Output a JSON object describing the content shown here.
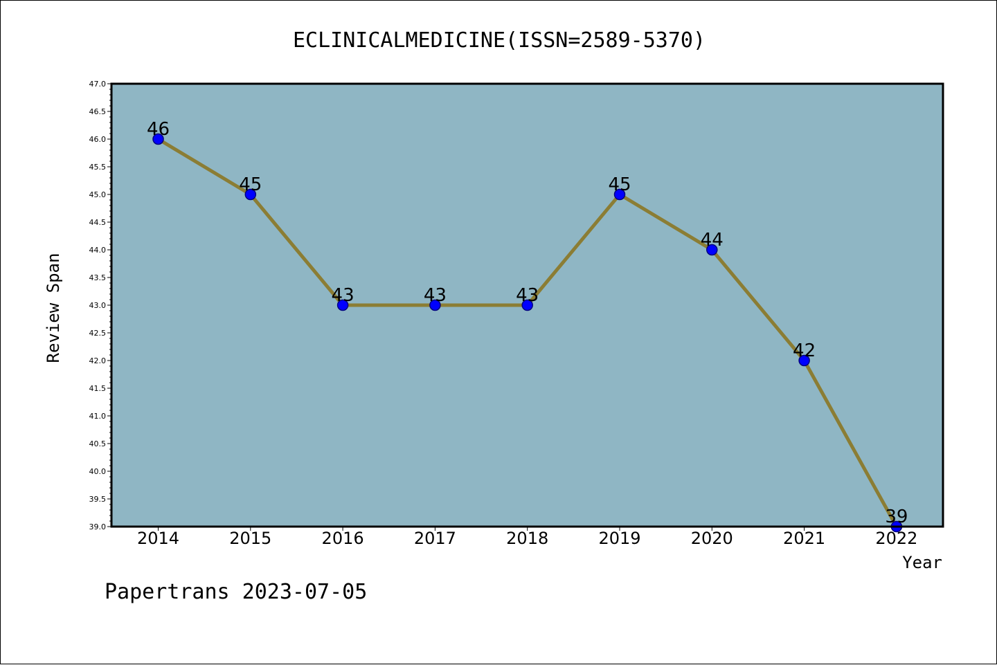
{
  "chart_data": {
    "type": "line",
    "title": "ECLINICALMEDICINE(ISSN=2589-5370)",
    "xlabel": "Year",
    "ylabel": "Review Span",
    "categories": [
      "2014",
      "2015",
      "2016",
      "2017",
      "2018",
      "2019",
      "2020",
      "2021",
      "2022"
    ],
    "series": [
      {
        "values": [
          46,
          45,
          43,
          43,
          43,
          45,
          44,
          42,
          39
        ]
      }
    ],
    "data_labels": [
      "46",
      "45",
      "43",
      "43",
      "43",
      "45",
      "44",
      "42",
      "39"
    ],
    "ylim": [
      39.0,
      47.0
    ],
    "yticks": [
      "39.0",
      "39.5",
      "40.0",
      "40.5",
      "41.0",
      "41.5",
      "42.0",
      "42.5",
      "43.0",
      "43.5",
      "44.0",
      "44.5",
      "45.0",
      "45.5",
      "46.0",
      "46.5",
      "47.0"
    ],
    "grid": false,
    "legend": "none",
    "colors": {
      "plot_background": "#8fb6c4",
      "line": "#8b7d34",
      "marker_fill": "#0000ff",
      "marker_edge": "#000080"
    }
  },
  "footer": {
    "text": "Papertrans 2023-07-05"
  }
}
